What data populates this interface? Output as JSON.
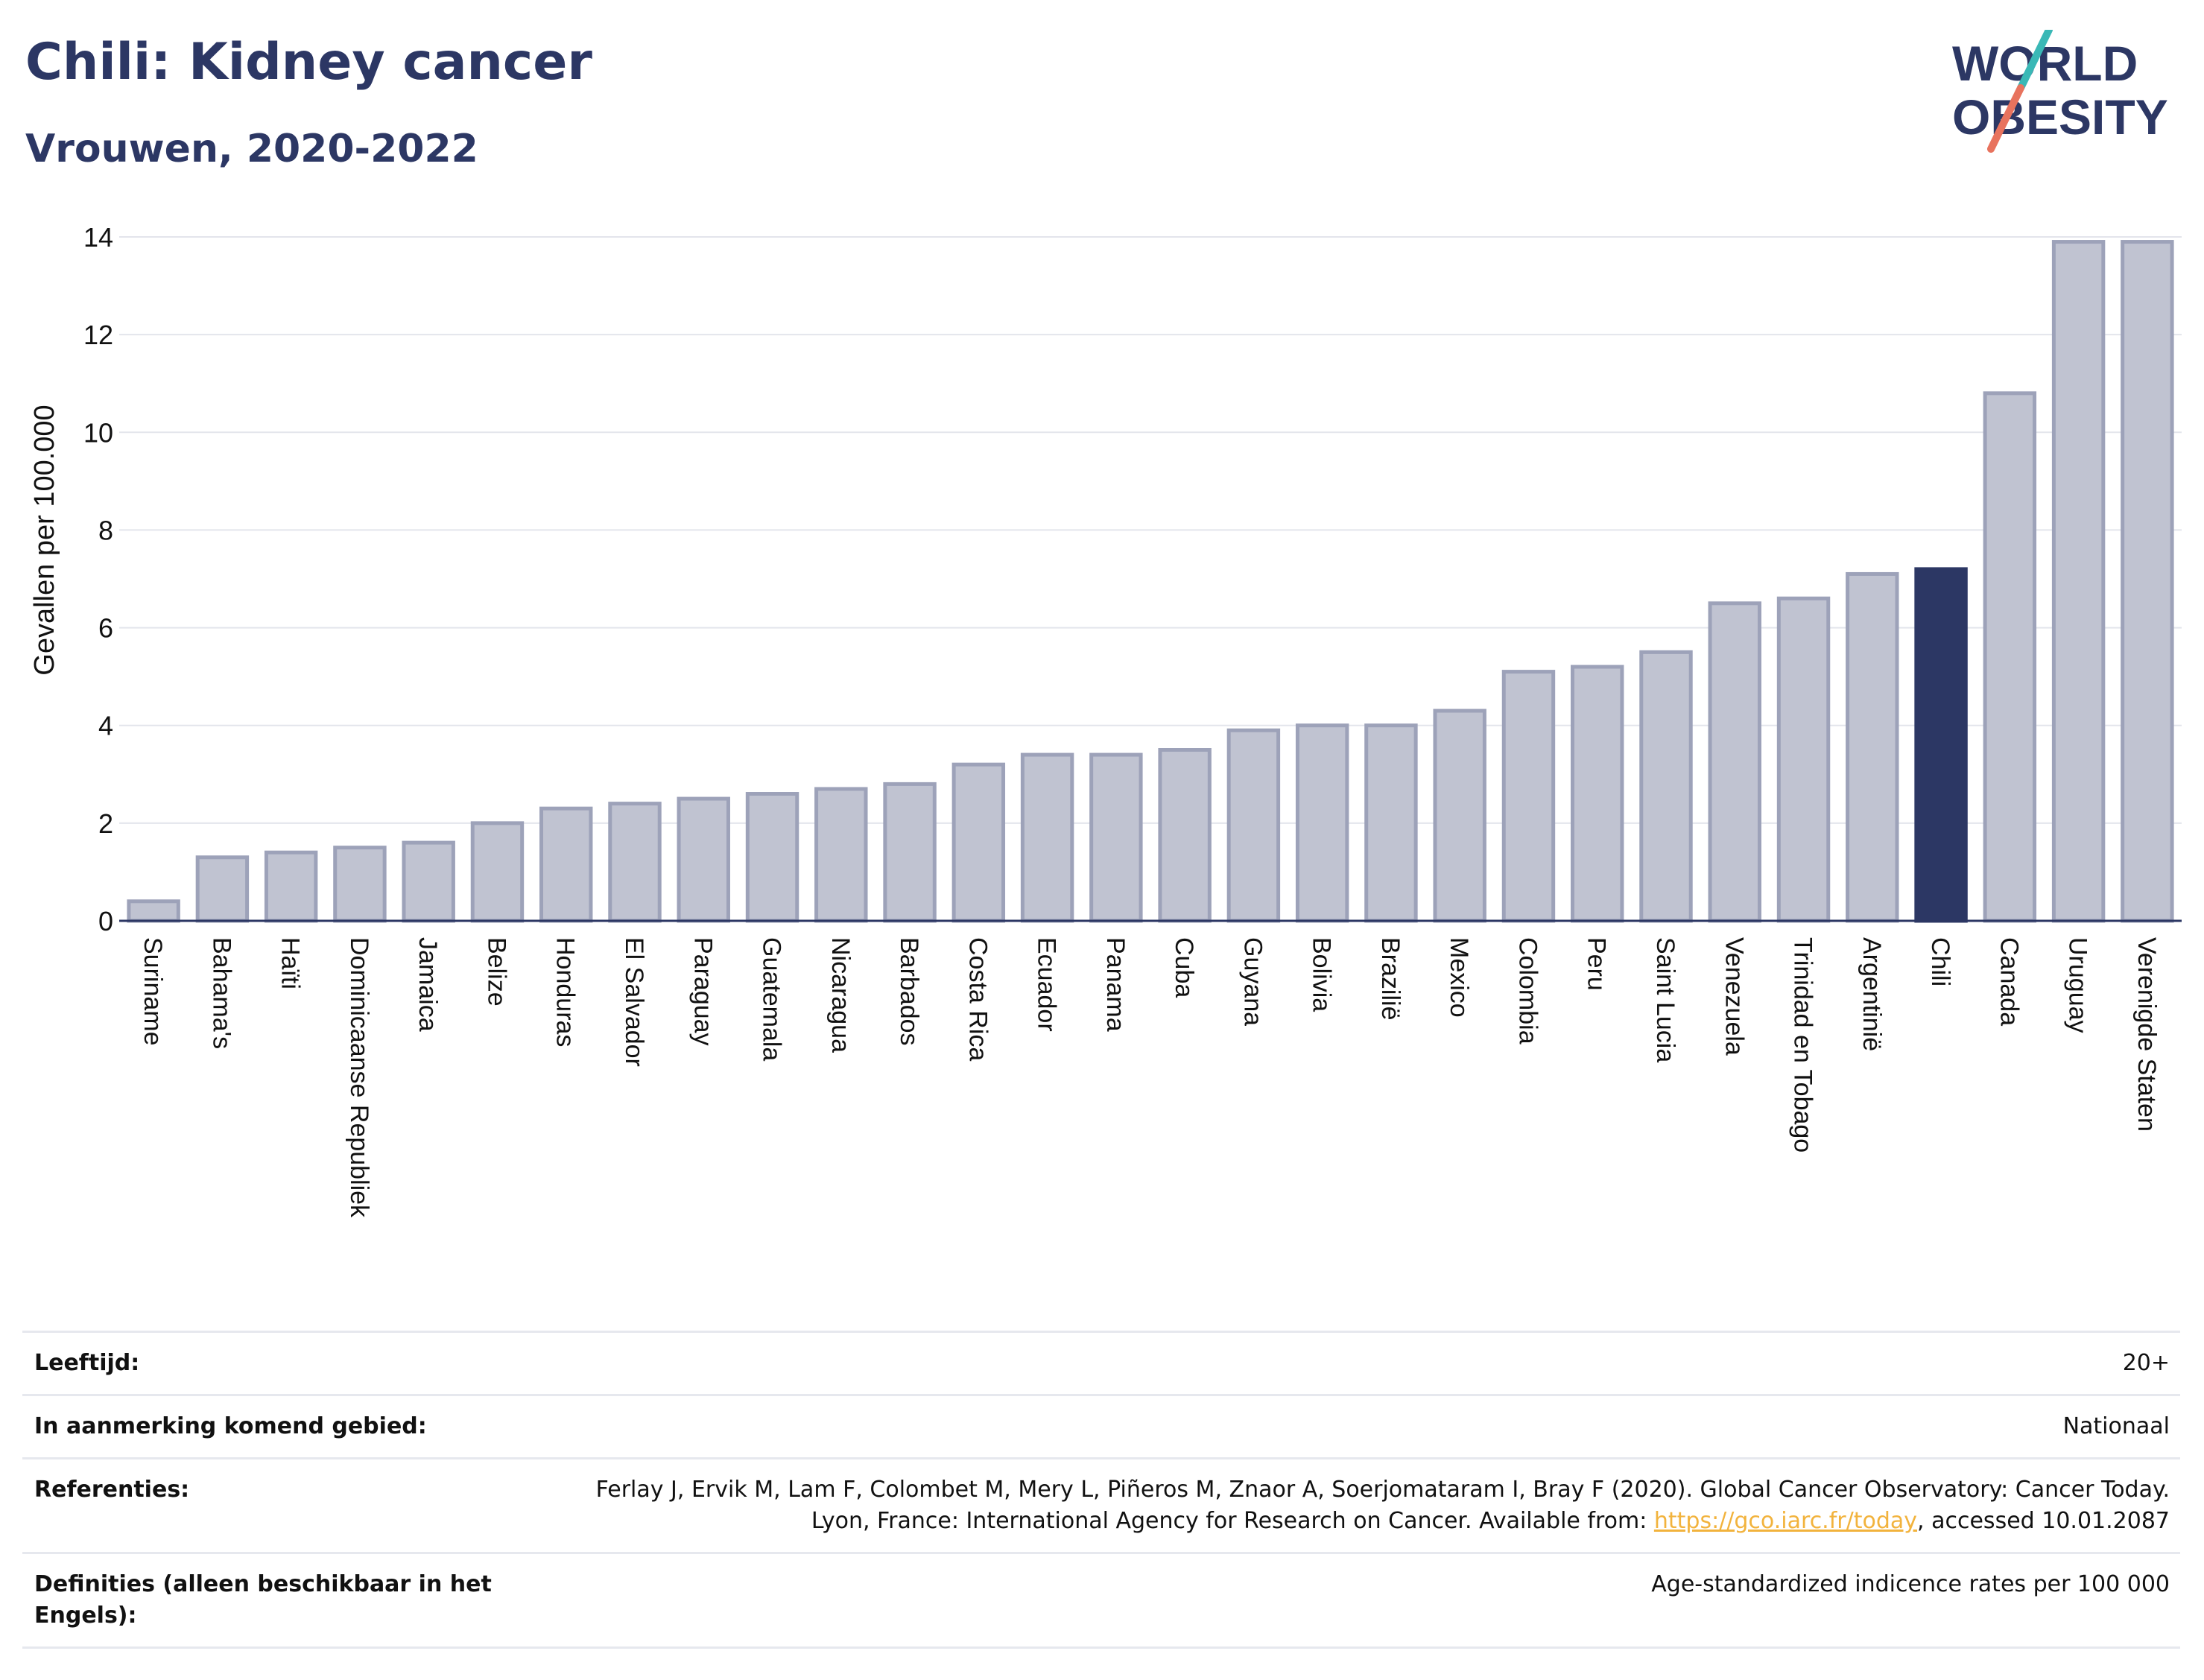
{
  "header": {
    "title": "Chili: Kidney cancer",
    "subtitle": "Vrouwen, 2020-2022"
  },
  "logo": {
    "line1": "WORLD",
    "line2": "OBESITY",
    "colors": {
      "text": "#2c3764",
      "slash_top": "#3ab8b6",
      "slash_bottom": "#e8735e"
    }
  },
  "chart_data": {
    "type": "bar",
    "ylabel": "Gevallen per 100.000",
    "xlabel": "",
    "ylim": [
      0,
      14
    ],
    "yticks": [
      0,
      2,
      4,
      6,
      8,
      10,
      12,
      14
    ],
    "grid": true,
    "highlight": "Chili",
    "colors": {
      "bar": "#c0c3d1",
      "bar_edge": "#9da2b9",
      "highlight": "#2c3764",
      "grid": "#e3e5ec"
    },
    "categories": [
      "Suriname",
      "Bahama's",
      "Haïti",
      "Dominicaanse Republiek",
      "Jamaica",
      "Belize",
      "Honduras",
      "El Salvador",
      "Paraguay",
      "Guatemala",
      "Nicaragua",
      "Barbados",
      "Costa Rica",
      "Ecuador",
      "Panama",
      "Cuba",
      "Guyana",
      "Bolivia",
      "Brazilië",
      "Mexico",
      "Colombia",
      "Peru",
      "Saint Lucia",
      "Venezuela",
      "Trinidad en Tobago",
      "Argentinië",
      "Chili",
      "Canada",
      "Uruguay",
      "Verenigde Staten"
    ],
    "values": [
      0.4,
      1.3,
      1.4,
      1.5,
      1.6,
      2.0,
      2.3,
      2.4,
      2.5,
      2.6,
      2.7,
      2.8,
      3.2,
      3.4,
      3.4,
      3.5,
      3.9,
      4.0,
      4.0,
      4.3,
      5.1,
      5.2,
      5.5,
      6.5,
      6.6,
      7.1,
      7.2,
      10.8,
      13.9,
      13.9
    ]
  },
  "meta": {
    "age_label": "Leeftijd:",
    "age_value": "20+",
    "area_label": "In aanmerking komend gebied:",
    "area_value": "Nationaal",
    "ref_label": "Referenties:",
    "ref_text_1": "Ferlay J, Ervik M, Lam F, Colombet M, Mery L, Piñeros M, Znaor A, Soerjomataram I, Bray F (2020). Global Cancer Observatory: Cancer Today. Lyon, France: International Agency for Research on Cancer. Available from: ",
    "ref_link": "https://gco.iarc.fr/today",
    "ref_text_2": ", accessed 10.01.2087",
    "def_label": "Definities (alleen beschikbaar in het Engels):",
    "def_value": "Age-standardized indicence rates per 100 000"
  }
}
